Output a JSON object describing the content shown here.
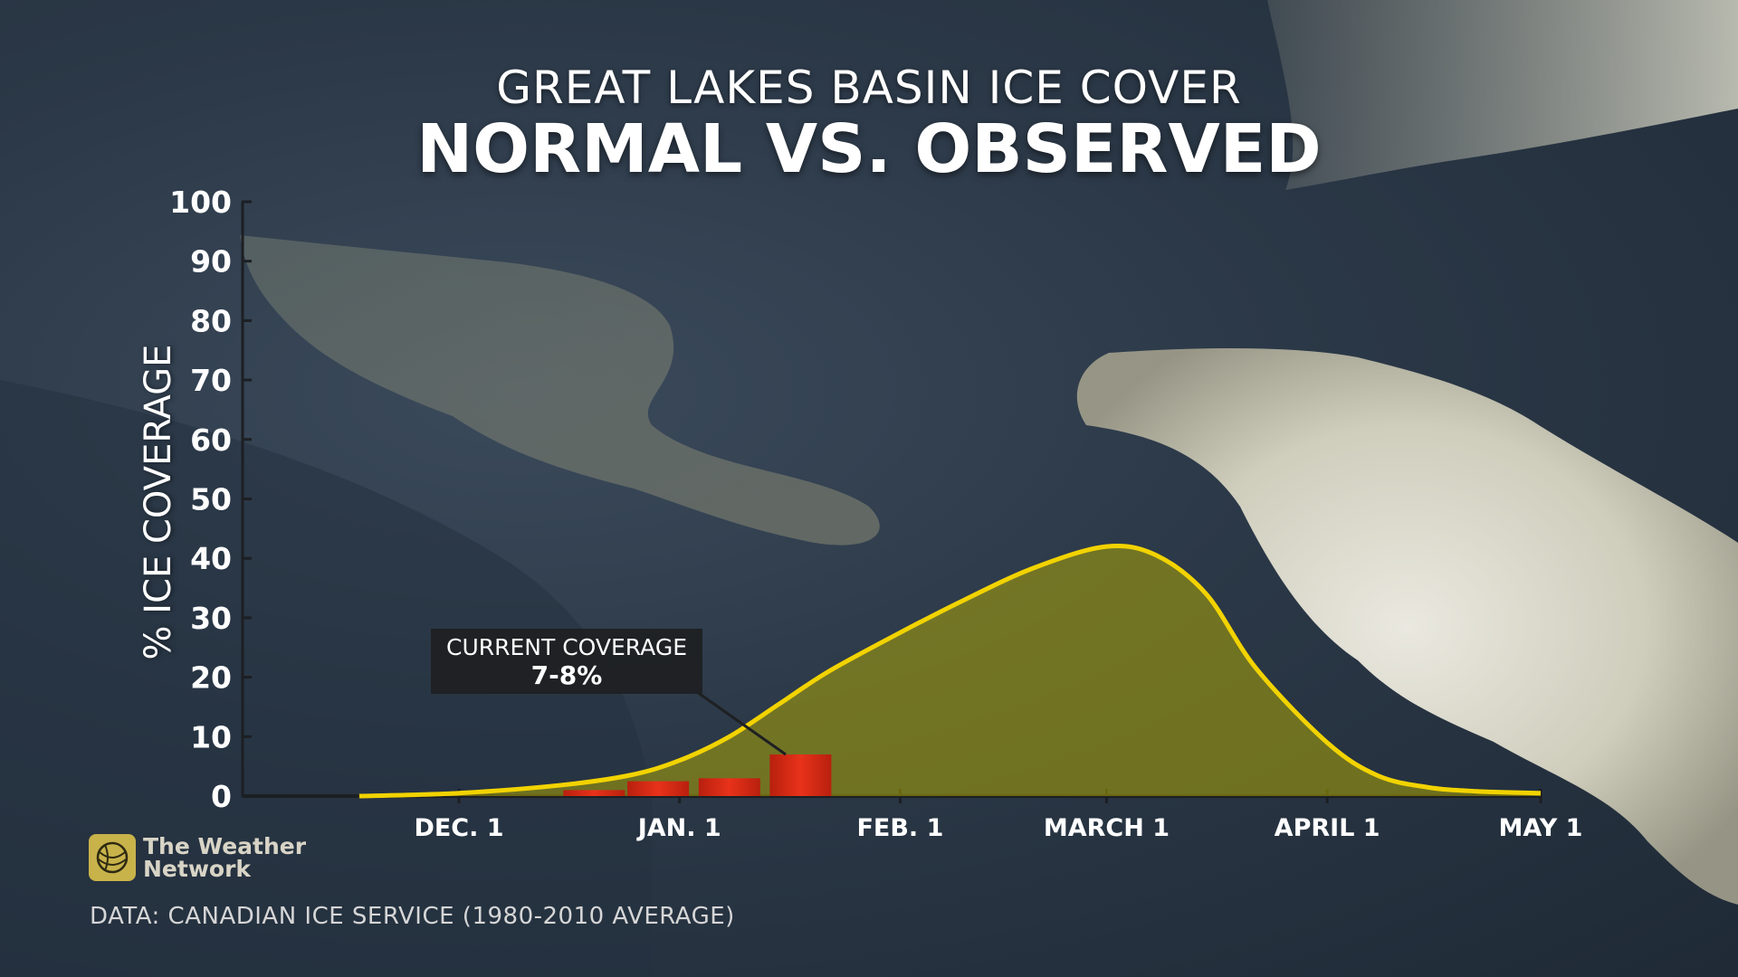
{
  "title": "GREAT LAKES BASIN ICE COVER",
  "subtitle": "NORMAL VS. OBSERVED",
  "callout": {
    "label": "CURRENT COVERAGE",
    "value": "7-8%"
  },
  "logo": {
    "text": "The Weather\nNetwork",
    "icon": "globe-icon",
    "color": "#c8b24a"
  },
  "source": "DATA: CANADIAN ICE SERVICE (1980-2010 AVERAGE)",
  "chart_data": {
    "type": "area",
    "title": "GREAT LAKES BASIN ICE COVER",
    "subtitle": "NORMAL VS. OBSERVED",
    "ylabel": "% ICE COVERAGE",
    "xlabel": "",
    "ylim": [
      0,
      100
    ],
    "yticks": [
      "0",
      "10",
      "20",
      "30",
      "40",
      "50",
      "60",
      "70",
      "80",
      "90",
      "100"
    ],
    "xtick_labels": [
      "DEC. 1",
      "JAN. 1",
      "FEB. 1",
      "MARCH 1",
      "APRIL 1",
      "MAY 1"
    ],
    "grid": false,
    "colors": {
      "normal_line": "#f2d300",
      "normal_fill": "#b8b000",
      "observed_bar": "#e8321a"
    },
    "series": [
      {
        "type": "area",
        "x": [
          "Nov 17",
          "Dec 1",
          "Dec 15",
          "Dec 25",
          "Jan 1",
          "Jan 8",
          "Jan 15",
          "Jan 22",
          "Feb 1",
          "Feb 10",
          "Feb 20",
          "Mar 1",
          "Mar 8",
          "Mar 15",
          "Mar 22",
          "Apr 1",
          "Apr 8",
          "Apr 15",
          "Apr 22",
          "May 1"
        ],
        "values": [
          0,
          0.5,
          1.8,
          3.5,
          6,
          10,
          15.5,
          21,
          27.5,
          33,
          38.5,
          42,
          40.5,
          34,
          21.5,
          9,
          3.5,
          1.5,
          0.8,
          0.5
        ]
      },
      {
        "type": "bar",
        "x": [
          "Dec 20",
          "Dec 29",
          "Jan 8",
          "Jan 18"
        ],
        "values": [
          1,
          2.5,
          3,
          7
        ]
      }
    ]
  }
}
